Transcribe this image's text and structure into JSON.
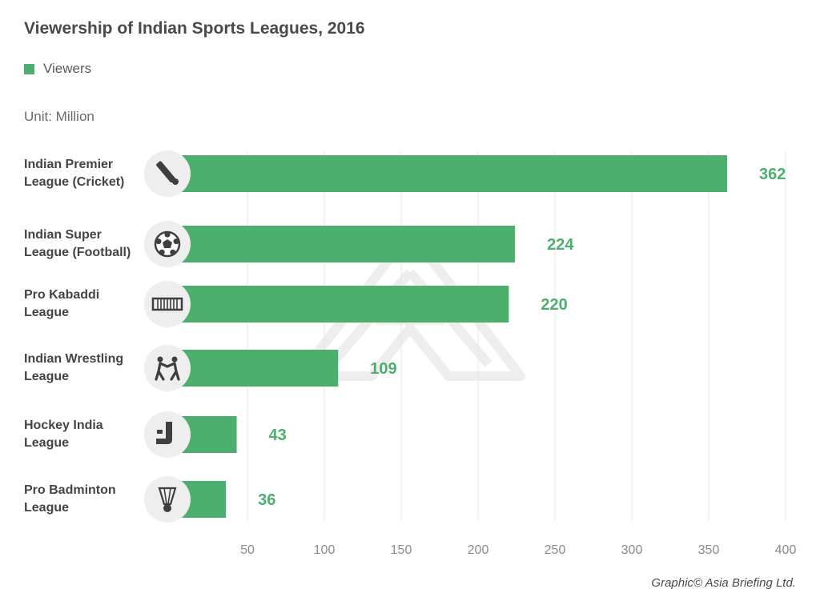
{
  "title": "Viewership of Indian Sports Leagues, 2016",
  "legend": {
    "label": "Viewers",
    "color": "#4caf6e"
  },
  "unit": "Unit: Million",
  "credit": "Graphic© Asia Briefing Ltd.",
  "chart_data": {
    "type": "bar",
    "orientation": "horizontal",
    "title": "Viewership of Indian Sports Leagues, 2016",
    "categories": [
      [
        "Indian Premier",
        "League (Cricket)"
      ],
      [
        "Indian Super",
        "League (Football)"
      ],
      [
        "Pro Kabaddi",
        "League"
      ],
      [
        "Indian Wrestling",
        "League"
      ],
      [
        "Hockey India",
        "League"
      ],
      [
        "Pro Badminton",
        "League"
      ]
    ],
    "icons": [
      "cricket-bat-icon",
      "football-icon",
      "kabaddi-court-icon",
      "wrestlers-icon",
      "hockey-stick-icon",
      "shuttlecock-icon"
    ],
    "series": [
      {
        "name": "Viewers",
        "values": [
          362,
          224,
          220,
          109,
          43,
          36
        ],
        "color": "#4caf6e"
      }
    ],
    "xticks": [
      50,
      100,
      150,
      200,
      250,
      300,
      350,
      400
    ],
    "xlim": [
      0,
      400
    ],
    "grid": true,
    "legend_position": "top-left"
  }
}
